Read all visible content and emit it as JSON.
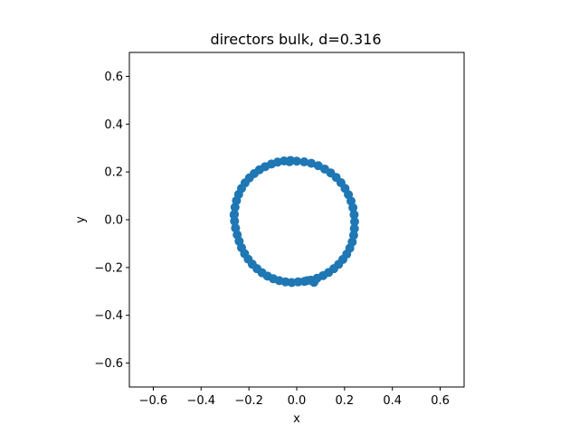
{
  "chart_data": {
    "type": "scatter",
    "title": "directors bulk, d=0.316",
    "xlabel": "x",
    "ylabel": "y",
    "xlim": [
      -0.7,
      0.7
    ],
    "ylim": [
      -0.7,
      0.7
    ],
    "xticks": [
      -0.6,
      -0.4,
      -0.2,
      0.0,
      0.2,
      0.4,
      0.6
    ],
    "yticks": [
      -0.6,
      -0.4,
      -0.2,
      0.0,
      0.2,
      0.4,
      0.6
    ],
    "xtick_labels": [
      "−0.6",
      "−0.4",
      "−0.2",
      "0.0",
      "0.2",
      "0.4",
      "0.6"
    ],
    "ytick_labels": [
      "−0.6",
      "−0.4",
      "−0.2",
      "0.0",
      "0.2",
      "0.4",
      "0.6"
    ],
    "grid": false,
    "series": [
      {
        "color": "#1f77b4",
        "x": [
          0.0,
          0.031,
          0.061,
          0.09,
          0.117,
          0.142,
          0.165,
          0.185,
          0.202,
          0.216,
          0.227,
          0.235,
          0.24,
          0.242,
          0.241,
          0.238,
          0.232,
          0.222,
          0.209,
          0.193,
          0.175,
          0.155,
          0.133,
          0.11,
          0.085,
          0.059,
          0.032,
          0.006,
          -0.021,
          -0.047,
          -0.073,
          -0.098,
          -0.122,
          -0.145,
          -0.166,
          -0.186,
          -0.203,
          -0.218,
          -0.231,
          -0.241,
          -0.249,
          -0.256,
          -0.26,
          -0.261,
          -0.258,
          -0.252,
          -0.243,
          -0.231,
          -0.216,
          -0.198,
          -0.178,
          -0.156,
          -0.132,
          -0.106,
          -0.08,
          -0.053,
          -0.026,
          -0.262,
          0.044,
          0.072,
          -0.03
        ],
        "y": [
          0.245,
          0.242,
          0.236,
          0.226,
          0.212,
          0.196,
          0.177,
          0.155,
          0.131,
          0.105,
          0.078,
          0.05,
          0.021,
          -0.008,
          -0.037,
          -0.065,
          -0.093,
          -0.119,
          -0.144,
          -0.166,
          -0.187,
          -0.205,
          -0.221,
          -0.234,
          -0.245,
          -0.253,
          -0.258,
          -0.26,
          -0.263,
          -0.26,
          -0.255,
          -0.247,
          -0.236,
          -0.222,
          -0.205,
          -0.186,
          -0.165,
          -0.142,
          -0.117,
          -0.09,
          -0.063,
          -0.035,
          -0.006,
          0.023,
          0.052,
          0.08,
          0.106,
          0.131,
          0.154,
          0.175,
          0.193,
          0.209,
          0.222,
          0.233,
          0.241,
          0.246,
          0.248,
          0.02,
          -0.255,
          -0.262,
          0.243
        ]
      }
    ]
  }
}
